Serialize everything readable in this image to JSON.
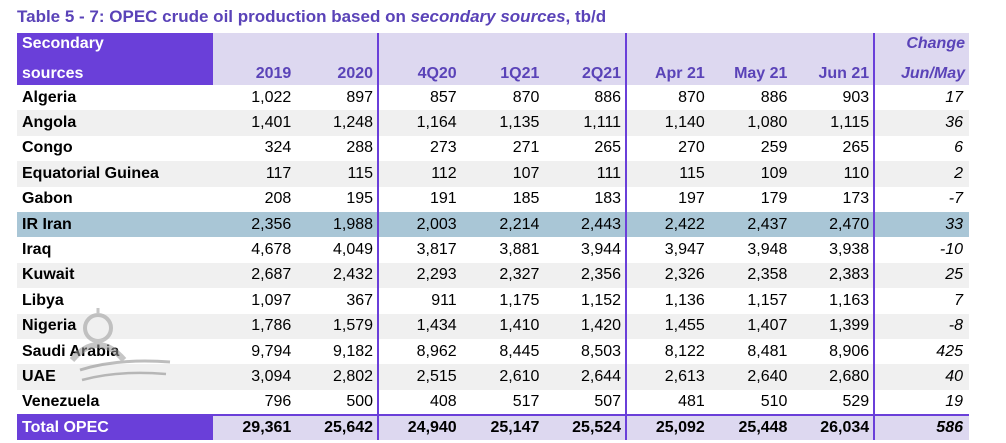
{
  "title": {
    "prefix": "Table 5 - 7: OPEC crude oil production based on ",
    "emph": "secondary sources",
    "suffix": ", tb/d"
  },
  "header": {
    "lead_line1": "Secondary",
    "lead_line2": "sources",
    "change_line1": "Change",
    "change_line2": "Jun/May",
    "columns": [
      "2019",
      "2020",
      "4Q20",
      "1Q21",
      "2Q21",
      "Apr 21",
      "May 21",
      "Jun 21"
    ]
  },
  "rows": [
    {
      "name": "Algeria",
      "values": [
        "1,022",
        "897",
        "857",
        "870",
        "886",
        "870",
        "886",
        "903"
      ],
      "change": "17"
    },
    {
      "name": "Angola",
      "values": [
        "1,401",
        "1,248",
        "1,164",
        "1,135",
        "1,111",
        "1,140",
        "1,080",
        "1,115"
      ],
      "change": "36"
    },
    {
      "name": "Congo",
      "values": [
        "324",
        "288",
        "273",
        "271",
        "265",
        "270",
        "259",
        "265"
      ],
      "change": "6"
    },
    {
      "name": "Equatorial Guinea",
      "values": [
        "117",
        "115",
        "112",
        "107",
        "111",
        "115",
        "109",
        "110"
      ],
      "change": "2"
    },
    {
      "name": "Gabon",
      "values": [
        "208",
        "195",
        "191",
        "185",
        "183",
        "197",
        "179",
        "173"
      ],
      "change": "-7"
    },
    {
      "name": "IR Iran",
      "values": [
        "2,356",
        "1,988",
        "2,003",
        "2,214",
        "2,443",
        "2,422",
        "2,437",
        "2,470"
      ],
      "change": "33"
    },
    {
      "name": "Iraq",
      "values": [
        "4,678",
        "4,049",
        "3,817",
        "3,881",
        "3,944",
        "3,947",
        "3,948",
        "3,938"
      ],
      "change": "-10"
    },
    {
      "name": "Kuwait",
      "values": [
        "2,687",
        "2,432",
        "2,293",
        "2,327",
        "2,356",
        "2,326",
        "2,358",
        "2,383"
      ],
      "change": "25"
    },
    {
      "name": "Libya",
      "values": [
        "1,097",
        "367",
        "911",
        "1,175",
        "1,152",
        "1,136",
        "1,157",
        "1,163"
      ],
      "change": "7"
    },
    {
      "name": "Nigeria",
      "values": [
        "1,786",
        "1,579",
        "1,434",
        "1,410",
        "1,420",
        "1,455",
        "1,407",
        "1,399"
      ],
      "change": "-8"
    },
    {
      "name": "Saudi Arabia",
      "values": [
        "9,794",
        "9,182",
        "8,962",
        "8,445",
        "8,503",
        "8,122",
        "8,481",
        "8,906"
      ],
      "change": "425"
    },
    {
      "name": "UAE",
      "values": [
        "3,094",
        "2,802",
        "2,515",
        "2,610",
        "2,644",
        "2,613",
        "2,640",
        "2,680"
      ],
      "change": "40"
    },
    {
      "name": "Venezuela",
      "values": [
        "796",
        "500",
        "408",
        "517",
        "507",
        "481",
        "510",
        "529"
      ],
      "change": "19"
    }
  ],
  "total": {
    "name": "Total  OPEC",
    "values": [
      "29,361",
      "25,642",
      "24,940",
      "25,147",
      "25,524",
      "25,092",
      "25,448",
      "26,034"
    ],
    "change": "586"
  },
  "highlight_row": "IR Iran",
  "colors": {
    "accent": "#6a3fd9",
    "header_fill": "#ddd8f0",
    "highlight": "#a9c6d6",
    "title": "#5a43b8"
  },
  "watermark": {
    "icon": "news-agency-logo-icon"
  }
}
